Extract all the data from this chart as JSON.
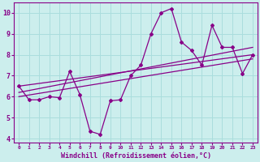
{
  "xlabel": "Windchill (Refroidissement éolien,°C)",
  "xlim": [
    -0.5,
    23.5
  ],
  "ylim": [
    3.8,
    10.5
  ],
  "yticks": [
    4,
    5,
    6,
    7,
    8,
    9,
    10
  ],
  "xticks": [
    0,
    1,
    2,
    3,
    4,
    5,
    6,
    7,
    8,
    9,
    10,
    11,
    12,
    13,
    14,
    15,
    16,
    17,
    18,
    19,
    20,
    21,
    22,
    23
  ],
  "bg_color": "#cceeed",
  "line_color": "#880088",
  "grid_color": "#aadddd",
  "spine_color": "#880088",
  "line1_x": [
    0,
    1,
    2,
    3,
    4,
    5,
    6,
    7,
    8,
    9,
    10,
    11,
    12,
    13,
    14,
    15,
    16,
    17,
    18,
    19,
    20,
    21,
    22,
    23
  ],
  "line1_y": [
    6.5,
    5.85,
    5.85,
    6.0,
    5.95,
    7.2,
    6.1,
    4.35,
    4.2,
    5.8,
    5.85,
    7.0,
    7.5,
    9.0,
    10.0,
    10.2,
    8.6,
    8.2,
    7.5,
    9.4,
    8.35,
    8.35,
    7.1,
    8.0
  ],
  "line2_x": [
    0,
    23
  ],
  "line2_y": [
    6.0,
    7.8
  ],
  "line3_x": [
    0,
    23
  ],
  "line3_y": [
    6.2,
    8.35
  ],
  "line4_x": [
    0,
    23
  ],
  "line4_y": [
    6.5,
    8.0
  ]
}
